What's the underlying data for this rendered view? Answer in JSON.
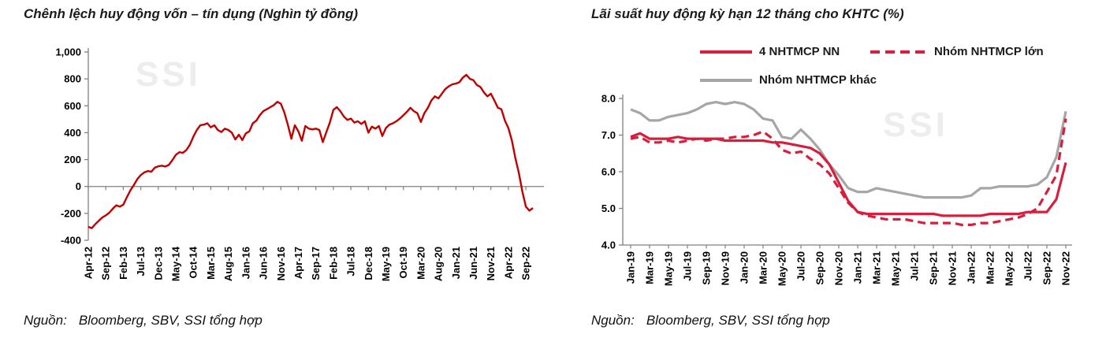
{
  "page": {
    "background": "#ffffff"
  },
  "left_panel": {
    "title": "Chênh lệch huy động vốn – tín dụng (Nghìn tỷ đồng)",
    "watermark": "SSI",
    "source_label": "Nguồn:",
    "source_text": "Bloomberg, SBV, SSI tổng hợp"
  },
  "right_panel": {
    "title": "Lãi suất huy động kỳ hạn 12 tháng cho KHTC (%)",
    "watermark": "SSI",
    "source_label": "Nguồn:",
    "source_text": "Bloomberg, SBV, SSI tổng hợp",
    "legend": [
      {
        "label": "4 NHTMCP NN",
        "color": "#D81E3D",
        "style": "solid"
      },
      {
        "label": "Nhóm NHTMCP lớn",
        "color": "#D81E3D",
        "style": "dashed"
      },
      {
        "label": "Nhóm NHTMCP khác",
        "color": "#A6A6A6",
        "style": "solid"
      }
    ]
  },
  "colors": {
    "left_line": "#C00000",
    "right_red": "#D81E3D",
    "right_gray": "#A6A6A6",
    "axis": "#808080",
    "watermark": "#EDEDED"
  },
  "chart_data": [
    {
      "type": "line",
      "title": "Chênh lệch huy động vốn – tín dụng (Nghìn tỷ đồng)",
      "ylabel": "Nghìn tỷ đồng",
      "ylim": [
        -400,
        1000
      ],
      "yticks": [
        1000,
        800,
        600,
        400,
        200,
        0,
        -200,
        -400
      ],
      "ytick_labels": [
        "1,000",
        "800",
        "600",
        "400",
        "200",
        "0",
        "-200",
        "-400"
      ],
      "x_axis_value": 0,
      "tick_every": 5,
      "grid": false,
      "legend_position": "none",
      "x": [
        "Apr-12",
        "May-12",
        "Jun-12",
        "Jul-12",
        "Aug-12",
        "Sep-12",
        "Oct-12",
        "Nov-12",
        "Dec-12",
        "Jan-13",
        "Feb-13",
        "Mar-13",
        "Apr-13",
        "May-13",
        "Jun-13",
        "Jul-13",
        "Aug-13",
        "Sep-13",
        "Oct-13",
        "Nov-13",
        "Dec-13",
        "Jan-14",
        "Feb-14",
        "Mar-14",
        "Apr-14",
        "May-14",
        "Jun-14",
        "Jul-14",
        "Aug-14",
        "Sep-14",
        "Oct-14",
        "Nov-14",
        "Dec-14",
        "Jan-15",
        "Feb-15",
        "Mar-15",
        "Apr-15",
        "May-15",
        "Jun-15",
        "Jul-15",
        "Aug-15",
        "Sep-15",
        "Oct-15",
        "Nov-15",
        "Dec-15",
        "Jan-16",
        "Feb-16",
        "Mar-16",
        "Apr-16",
        "May-16",
        "Jun-16",
        "Jul-16",
        "Aug-16",
        "Sep-16",
        "Oct-16",
        "Nov-16",
        "Dec-16",
        "Jan-17",
        "Feb-17",
        "Mar-17",
        "Apr-17",
        "May-17",
        "Jun-17",
        "Jul-17",
        "Aug-17",
        "Sep-17",
        "Oct-17",
        "Nov-17",
        "Dec-17",
        "Jan-18",
        "Feb-18",
        "Mar-18",
        "Apr-18",
        "May-18",
        "Jun-18",
        "Jul-18",
        "Aug-18",
        "Sep-18",
        "Oct-18",
        "Nov-18",
        "Dec-18",
        "Jan-19",
        "Feb-19",
        "Mar-19",
        "Apr-19",
        "May-19",
        "Jun-19",
        "Jul-19",
        "Aug-19",
        "Sep-19",
        "Oct-19",
        "Nov-19",
        "Dec-19",
        "Jan-20",
        "Feb-20",
        "Mar-20",
        "Apr-20",
        "May-20",
        "Jun-20",
        "Jul-20",
        "Aug-20",
        "Sep-20",
        "Oct-20",
        "Nov-20",
        "Dec-20",
        "Jan-21",
        "Feb-21",
        "Mar-21",
        "Apr-21",
        "May-21",
        "Jun-21",
        "Jul-21",
        "Aug-21",
        "Sep-21",
        "Oct-21",
        "Nov-21",
        "Dec-21",
        "Jan-22",
        "Feb-22",
        "Mar-22",
        "Apr-22",
        "May-22",
        "Jun-22",
        "Jul-22",
        "Aug-22",
        "Sep-22",
        "Oct-22",
        "Nov-22"
      ],
      "series": [
        {
          "name": "chenh-lech-huy-dong-tin-dung",
          "color": "#C00000",
          "dash": null,
          "width": 2.4,
          "values": [
            -300,
            -310,
            -280,
            -255,
            -230,
            -215,
            -195,
            -165,
            -140,
            -150,
            -135,
            -80,
            -30,
            10,
            55,
            85,
            105,
            115,
            110,
            140,
            150,
            155,
            148,
            160,
            195,
            235,
            255,
            250,
            270,
            310,
            370,
            420,
            455,
            460,
            470,
            440,
            455,
            420,
            405,
            430,
            420,
            400,
            350,
            385,
            345,
            395,
            410,
            470,
            490,
            530,
            560,
            575,
            590,
            605,
            630,
            615,
            550,
            460,
            355,
            455,
            410,
            340,
            450,
            430,
            425,
            430,
            420,
            330,
            405,
            475,
            570,
            590,
            560,
            520,
            495,
            505,
            475,
            485,
            465,
            485,
            400,
            445,
            430,
            450,
            375,
            435,
            460,
            470,
            485,
            505,
            530,
            555,
            585,
            560,
            545,
            480,
            545,
            585,
            640,
            670,
            655,
            690,
            725,
            745,
            760,
            765,
            775,
            810,
            830,
            800,
            790,
            755,
            740,
            700,
            670,
            690,
            640,
            585,
            575,
            490,
            435,
            340,
            210,
            100,
            -40,
            -150,
            -180,
            -160
          ]
        }
      ]
    },
    {
      "type": "line",
      "title": "Lãi suất huy động kỳ hạn 12 tháng cho KHTC (%)",
      "ylabel": "%",
      "ylim": [
        4.0,
        8.0
      ],
      "yticks": [
        8.0,
        7.0,
        6.0,
        5.0,
        4.0
      ],
      "ytick_labels": [
        "8.0",
        "7.0",
        "6.0",
        "5.0",
        "4.0"
      ],
      "x_axis_value": 4.0,
      "tick_every": 2,
      "grid": false,
      "legend_position": "top",
      "x": [
        "Jan-19",
        "Feb-19",
        "Mar-19",
        "Apr-19",
        "May-19",
        "Jun-19",
        "Jul-19",
        "Aug-19",
        "Sep-19",
        "Oct-19",
        "Nov-19",
        "Dec-19",
        "Jan-20",
        "Feb-20",
        "Mar-20",
        "Apr-20",
        "May-20",
        "Jun-20",
        "Jul-20",
        "Aug-20",
        "Sep-20",
        "Oct-20",
        "Nov-20",
        "Dec-20",
        "Jan-21",
        "Feb-21",
        "Mar-21",
        "Apr-21",
        "May-21",
        "Jun-21",
        "Jul-21",
        "Aug-21",
        "Sep-21",
        "Oct-21",
        "Nov-21",
        "Dec-21",
        "Jan-22",
        "Feb-22",
        "Mar-22",
        "Apr-22",
        "May-22",
        "Jun-22",
        "Jul-22",
        "Aug-22",
        "Sep-22",
        "Oct-22",
        "Nov-22"
      ],
      "series": [
        {
          "name": "nhom-nhtmcp-khac",
          "color": "#A6A6A6",
          "dash": null,
          "width": 3.2,
          "values": [
            7.7,
            7.6,
            7.4,
            7.4,
            7.5,
            7.55,
            7.6,
            7.7,
            7.85,
            7.9,
            7.85,
            7.9,
            7.85,
            7.7,
            7.45,
            7.4,
            6.95,
            6.9,
            7.15,
            6.9,
            6.6,
            6.2,
            5.9,
            5.55,
            5.45,
            5.45,
            5.55,
            5.5,
            5.45,
            5.4,
            5.35,
            5.3,
            5.3,
            5.3,
            5.3,
            5.3,
            5.35,
            5.55,
            5.55,
            5.6,
            5.6,
            5.6,
            5.6,
            5.65,
            5.85,
            6.4,
            7.65
          ]
        },
        {
          "name": "4-nhtmcp-nn",
          "color": "#D81E3D",
          "dash": null,
          "width": 3.2,
          "values": [
            6.95,
            7.05,
            6.9,
            6.9,
            6.9,
            6.95,
            6.9,
            6.9,
            6.9,
            6.9,
            6.85,
            6.85,
            6.85,
            6.85,
            6.85,
            6.8,
            6.8,
            6.75,
            6.7,
            6.65,
            6.5,
            6.2,
            5.7,
            5.2,
            4.9,
            4.85,
            4.85,
            4.85,
            4.85,
            4.85,
            4.85,
            4.85,
            4.85,
            4.8,
            4.8,
            4.8,
            4.8,
            4.8,
            4.85,
            4.85,
            4.85,
            4.85,
            4.9,
            4.9,
            4.9,
            5.25,
            6.25
          ]
        },
        {
          "name": "nhom-nhtmcp-lon",
          "color": "#D81E3D",
          "dash": "10 6",
          "width": 3.2,
          "values": [
            6.9,
            6.95,
            6.8,
            6.8,
            6.85,
            6.8,
            6.85,
            6.9,
            6.85,
            6.9,
            6.9,
            6.95,
            6.95,
            7.0,
            7.1,
            6.9,
            6.6,
            6.5,
            6.55,
            6.35,
            6.2,
            5.95,
            5.55,
            5.15,
            4.9,
            4.8,
            4.75,
            4.7,
            4.7,
            4.7,
            4.65,
            4.6,
            4.6,
            4.6,
            4.6,
            4.55,
            4.55,
            4.6,
            4.6,
            4.65,
            4.7,
            4.75,
            4.85,
            5.0,
            5.45,
            5.9,
            7.45
          ]
        }
      ]
    }
  ]
}
